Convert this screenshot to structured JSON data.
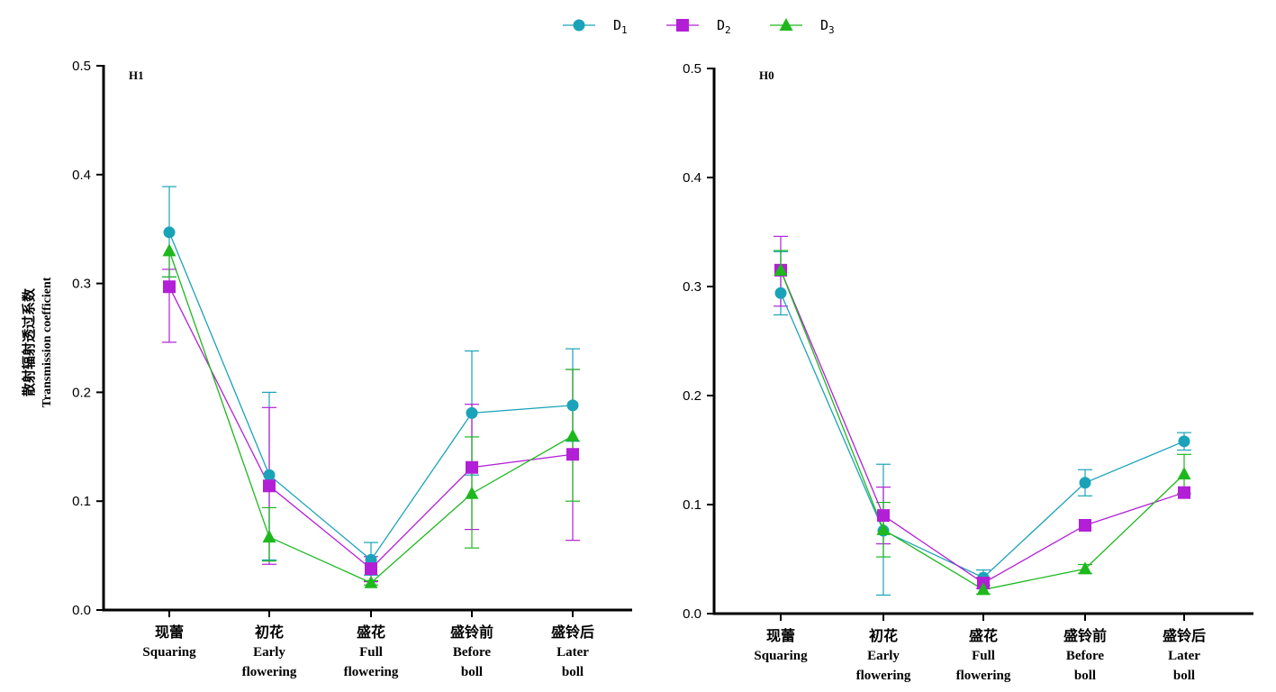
{
  "legend": {
    "items": [
      {
        "label": "D",
        "sub": "1",
        "color": "#1aa3b8",
        "marker": "circle"
      },
      {
        "label": "D",
        "sub": "2",
        "color": "#b31fd6",
        "marker": "square"
      },
      {
        "label": "D",
        "sub": "3",
        "color": "#1eb81e",
        "marker": "triangle"
      }
    ]
  },
  "y_axis_label": {
    "cn": "散射辐射透过系数",
    "en": "Transmission coefficient"
  },
  "categories": [
    {
      "cn": "现蕾",
      "en": [
        "Squaring"
      ]
    },
    {
      "cn": "初花",
      "en": [
        "Early",
        "flowering"
      ]
    },
    {
      "cn": "盛花",
      "en": [
        "Full",
        "flowering"
      ]
    },
    {
      "cn": "盛铃前",
      "en": [
        "Before",
        "boll"
      ]
    },
    {
      "cn": "盛铃后",
      "en": [
        "Later",
        "boll"
      ]
    }
  ],
  "chart_data": [
    {
      "type": "line",
      "panel_label": "H1",
      "ylim": [
        0,
        0.5
      ],
      "yticks": [
        "0.0",
        "0.1",
        "0.2",
        "0.3",
        "0.4",
        "0.5"
      ],
      "series": [
        {
          "name": "D1",
          "values": [
            0.347,
            0.124,
            0.046,
            0.181,
            0.188
          ],
          "err_low": [
            0.041,
            0.078,
            0.014,
            0.057,
            0.033
          ],
          "err_high": [
            0.042,
            0.076,
            0.016,
            0.057,
            0.052
          ]
        },
        {
          "name": "D2",
          "values": [
            0.297,
            0.114,
            0.038,
            0.131,
            0.143
          ],
          "err_low": [
            0.051,
            0.072,
            0.012,
            0.057,
            0.079
          ],
          "err_high": [
            0.016,
            0.072,
            0.011,
            0.058,
            0.078
          ]
        },
        {
          "name": "D3",
          "values": [
            0.33,
            0.067,
            0.025,
            0.107,
            0.16
          ],
          "err_low": [
            0.024,
            0.022,
            0.002,
            0.05,
            0.06
          ],
          "err_high": [
            0.0,
            0.027,
            0.002,
            0.052,
            0.061
          ]
        }
      ]
    },
    {
      "type": "line",
      "panel_label": "H0",
      "ylim": [
        0,
        0.5
      ],
      "yticks": [
        "0.0",
        "0.1",
        "0.2",
        "0.3",
        "0.4",
        "0.5"
      ],
      "series": [
        {
          "name": "D1",
          "values": [
            0.294,
            0.076,
            0.033,
            0.12,
            0.158
          ],
          "err_low": [
            0.02,
            0.059,
            0.007,
            0.012,
            0.008
          ],
          "err_high": [
            0.038,
            0.061,
            0.007,
            0.012,
            0.008
          ]
        },
        {
          "name": "D2",
          "values": [
            0.315,
            0.09,
            0.028,
            0.081,
            0.111
          ],
          "err_low": [
            0.033,
            0.026,
            0.005,
            0.0,
            0.0
          ],
          "err_high": [
            0.031,
            0.026,
            0.005,
            0.0,
            0.0
          ]
        },
        {
          "name": "D3",
          "values": [
            0.315,
            0.077,
            0.022,
            0.041,
            0.128
          ],
          "err_low": [
            0.0,
            0.025,
            0.004,
            0.004,
            0.018
          ],
          "err_high": [
            0.018,
            0.025,
            0.004,
            0.004,
            0.018
          ]
        }
      ]
    }
  ]
}
